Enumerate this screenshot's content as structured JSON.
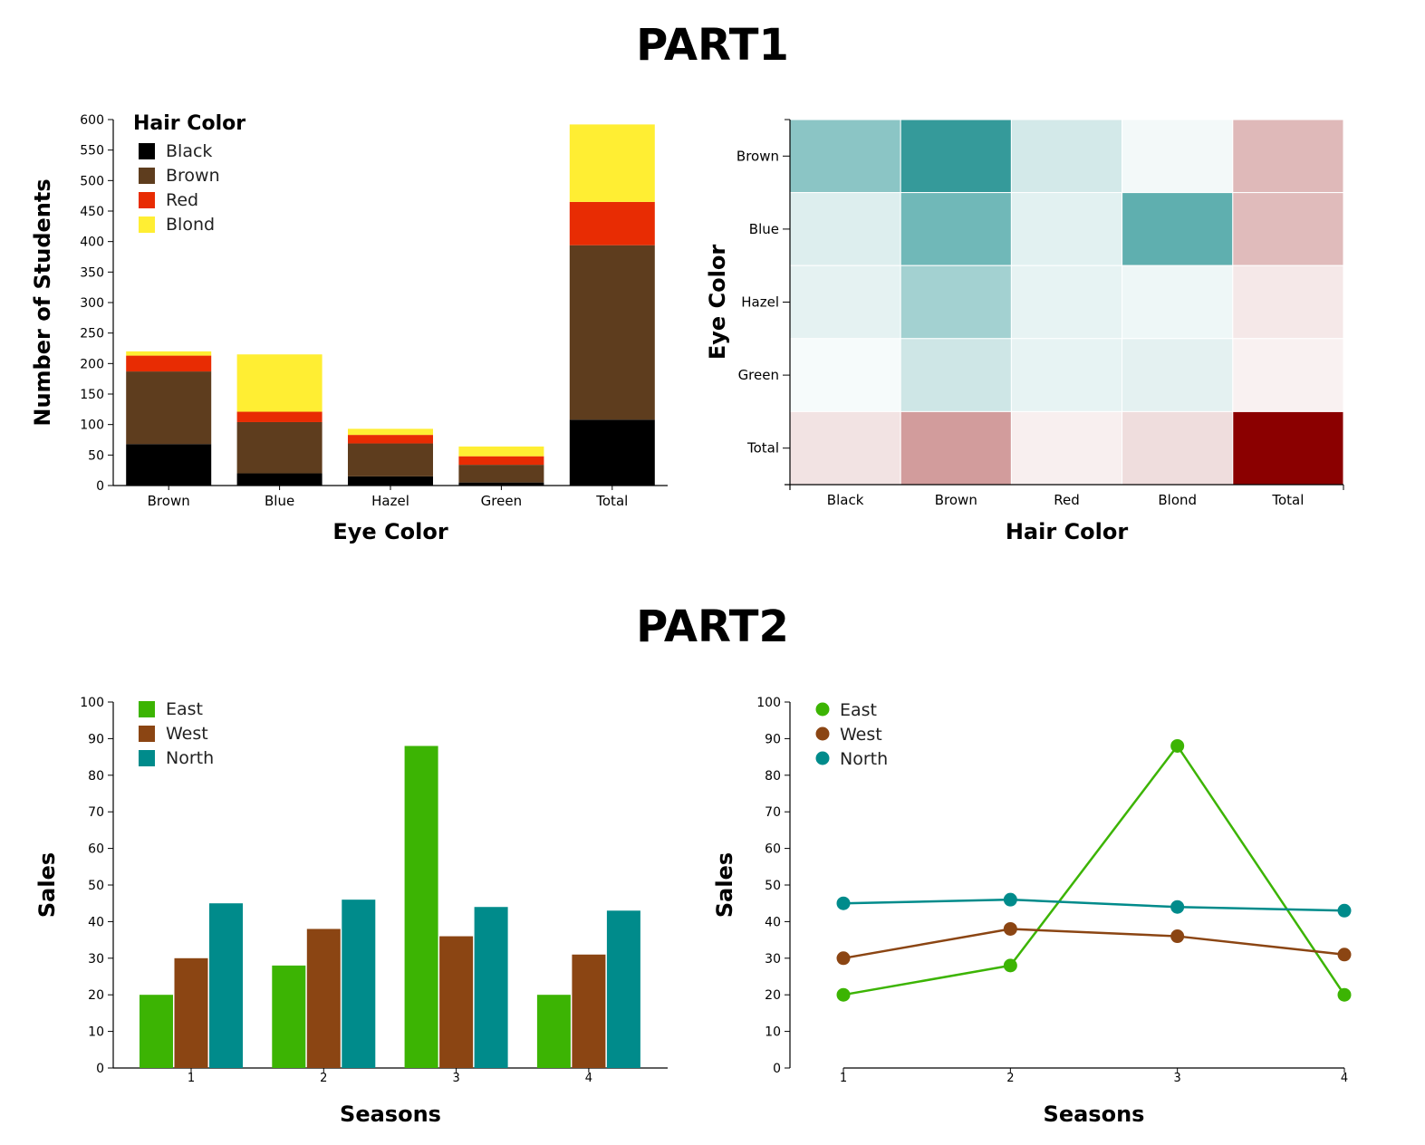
{
  "part1_title": "PART1",
  "part2_title": "PART2",
  "colors": {
    "hair": [
      "#000000",
      "#5E3D1E",
      "#E82C03",
      "#FFEE33"
    ],
    "sales": [
      "#3CB403",
      "#8B4513",
      "#008B8B"
    ],
    "heat_low": "#FFFFFF",
    "heat_teal": "#2A9595",
    "heat_red": "#8B0000"
  },
  "chart_data": [
    {
      "type": "bar",
      "stacked": true,
      "title": "",
      "xlabel": "Eye Color",
      "ylabel": "Number of Students",
      "categories": [
        "Brown",
        "Blue",
        "Hazel",
        "Green",
        "Total"
      ],
      "ylim": [
        0,
        600
      ],
      "yticks": [
        0,
        50,
        100,
        150,
        200,
        250,
        300,
        350,
        400,
        450,
        500,
        550,
        600
      ],
      "legend_title": "Hair Color",
      "legend_position": "top-left",
      "series": [
        {
          "name": "Black",
          "values": [
            68,
            20,
            15,
            5,
            108
          ]
        },
        {
          "name": "Brown",
          "values": [
            119,
            84,
            54,
            29,
            286
          ]
        },
        {
          "name": "Red",
          "values": [
            26,
            17,
            14,
            14,
            71
          ]
        },
        {
          "name": "Blond",
          "values": [
            7,
            94,
            10,
            16,
            127
          ]
        }
      ]
    },
    {
      "type": "heatmap",
      "title": "",
      "xlabel": "Hair Color",
      "ylabel": "Eye Color",
      "x": [
        "Black",
        "Brown",
        "Red",
        "Blond",
        "Total"
      ],
      "y": [
        "Brown",
        "Blue",
        "Hazel",
        "Green",
        "Total"
      ],
      "values": [
        [
          68,
          119,
          26,
          7,
          220
        ],
        [
          20,
          84,
          17,
          94,
          215
        ],
        [
          15,
          54,
          14,
          10,
          93
        ],
        [
          5,
          29,
          14,
          16,
          64
        ],
        [
          108,
          286,
          71,
          127,
          592
        ]
      ]
    },
    {
      "type": "bar",
      "title": "",
      "xlabel": "Seasons",
      "ylabel": "Sales",
      "categories": [
        "1",
        "2",
        "3",
        "4"
      ],
      "ylim": [
        0,
        100
      ],
      "yticks": [
        0,
        10,
        20,
        30,
        40,
        50,
        60,
        70,
        80,
        90,
        100
      ],
      "legend_position": "top-left",
      "series": [
        {
          "name": "East",
          "values": [
            20,
            28,
            88,
            20
          ]
        },
        {
          "name": "West",
          "values": [
            30,
            38,
            36,
            31
          ]
        },
        {
          "name": "North",
          "values": [
            45,
            46,
            44,
            43
          ]
        }
      ]
    },
    {
      "type": "line",
      "title": "",
      "xlabel": "Seasons",
      "ylabel": "Sales",
      "x": [
        "1",
        "2",
        "3",
        "4"
      ],
      "ylim": [
        0,
        100
      ],
      "yticks": [
        0,
        10,
        20,
        30,
        40,
        50,
        60,
        70,
        80,
        90,
        100
      ],
      "legend_position": "top-left",
      "series": [
        {
          "name": "East",
          "values": [
            20,
            28,
            88,
            20
          ]
        },
        {
          "name": "West",
          "values": [
            30,
            38,
            36,
            31
          ]
        },
        {
          "name": "North",
          "values": [
            45,
            46,
            44,
            43
          ]
        }
      ]
    }
  ]
}
